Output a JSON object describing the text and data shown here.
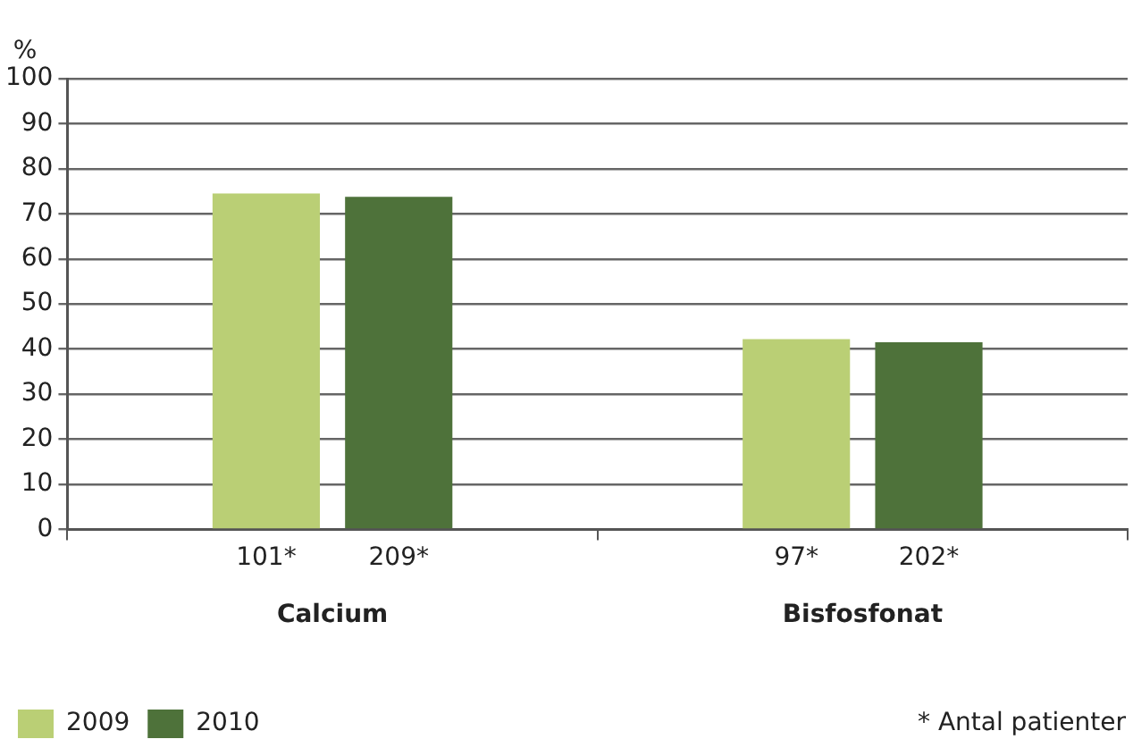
{
  "chart_data": {
    "type": "bar",
    "ylabel": "%",
    "categories": [
      "Calcium",
      "Bisfosfonat"
    ],
    "series": [
      {
        "name": "2009",
        "color": "#bacf75",
        "values": [
          74.5,
          42.2
        ]
      },
      {
        "name": "2010",
        "color": "#4e723a",
        "values": [
          73.8,
          41.5
        ]
      }
    ],
    "ylim": [
      0,
      100
    ],
    "yticks": [
      0,
      10,
      20,
      30,
      40,
      50,
      60,
      70,
      80,
      90,
      100
    ],
    "grid": "y",
    "legend": "bottom left",
    "annotations": [
      "101*",
      "209*",
      "97*",
      "202*",
      "* Antal patienter"
    ]
  }
}
